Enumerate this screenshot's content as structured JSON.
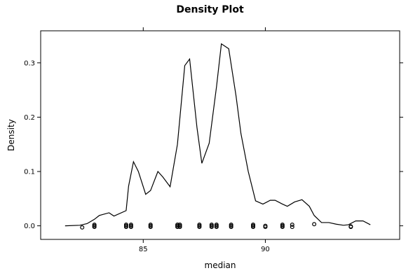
{
  "chart_data": {
    "type": "line",
    "title": "Density Plot",
    "xlabel": "median",
    "ylabel": "Density",
    "xlim": [
      80.8,
      95.5
    ],
    "ylim": [
      -0.025,
      0.359
    ],
    "x_ticks": [
      85,
      90
    ],
    "y_ticks": [
      0.0,
      0.1,
      0.2,
      0.3
    ],
    "x_tick_labels": [
      "85",
      "90"
    ],
    "y_tick_labels": [
      "0.0",
      "0.1",
      "0.2",
      "0.3"
    ],
    "grid": false,
    "series": [
      {
        "x": [
          81.8,
          82.4,
          82.7,
          83.0,
          83.2,
          83.6,
          83.8,
          84.3,
          84.4,
          84.6,
          84.8,
          85.1,
          85.3,
          85.6,
          85.8,
          86.1,
          86.4,
          86.7,
          86.9,
          87.2,
          87.4,
          87.7,
          88.0,
          88.2,
          88.5,
          88.8,
          89.0,
          89.3,
          89.6,
          89.9,
          90.2,
          90.4,
          90.7,
          90.9,
          91.2,
          91.5,
          91.8,
          92.0,
          92.3,
          92.6,
          92.9,
          93.2,
          93.4,
          93.7,
          94.0,
          94.3
        ],
        "y": [
          0.0,
          0.001,
          0.004,
          0.012,
          0.019,
          0.024,
          0.018,
          0.028,
          0.073,
          0.118,
          0.1,
          0.058,
          0.065,
          0.1,
          0.09,
          0.072,
          0.15,
          0.295,
          0.307,
          0.181,
          0.115,
          0.152,
          0.256,
          0.335,
          0.326,
          0.239,
          0.17,
          0.1,
          0.046,
          0.04,
          0.047,
          0.047,
          0.04,
          0.036,
          0.044,
          0.048,
          0.036,
          0.019,
          0.006,
          0.006,
          0.003,
          0.001,
          0.002,
          0.009,
          0.009,
          0.002
        ]
      }
    ],
    "rug_points": [
      {
        "x": 82.5,
        "y": -0.003
      },
      {
        "x": 83.0,
        "y": -0.002
      },
      {
        "x": 83.0,
        "y": 0.0
      },
      {
        "x": 83.0,
        "y": 0.002
      },
      {
        "x": 84.3,
        "y": -0.002
      },
      {
        "x": 84.3,
        "y": 0.0
      },
      {
        "x": 84.3,
        "y": 0.002
      },
      {
        "x": 84.5,
        "y": -0.002
      },
      {
        "x": 84.5,
        "y": 0.0
      },
      {
        "x": 84.5,
        "y": 0.002
      },
      {
        "x": 85.3,
        "y": -0.002
      },
      {
        "x": 85.3,
        "y": 0.0
      },
      {
        "x": 85.3,
        "y": 0.002
      },
      {
        "x": 86.4,
        "y": -0.002
      },
      {
        "x": 86.4,
        "y": 0.0
      },
      {
        "x": 86.4,
        "y": 0.002
      },
      {
        "x": 86.5,
        "y": -0.002
      },
      {
        "x": 86.5,
        "y": 0.0
      },
      {
        "x": 86.5,
        "y": 0.002
      },
      {
        "x": 87.3,
        "y": -0.002
      },
      {
        "x": 87.3,
        "y": 0.0
      },
      {
        "x": 87.3,
        "y": 0.002
      },
      {
        "x": 87.8,
        "y": -0.002
      },
      {
        "x": 87.8,
        "y": 0.0
      },
      {
        "x": 87.8,
        "y": 0.002
      },
      {
        "x": 88.0,
        "y": -0.002
      },
      {
        "x": 88.0,
        "y": 0.0
      },
      {
        "x": 88.0,
        "y": 0.002
      },
      {
        "x": 88.6,
        "y": -0.002
      },
      {
        "x": 88.6,
        "y": 0.0
      },
      {
        "x": 88.6,
        "y": 0.002
      },
      {
        "x": 89.5,
        "y": -0.002
      },
      {
        "x": 89.5,
        "y": 0.0
      },
      {
        "x": 89.5,
        "y": 0.002
      },
      {
        "x": 90.0,
        "y": -0.002
      },
      {
        "x": 90.0,
        "y": 0.0
      },
      {
        "x": 90.7,
        "y": -0.002
      },
      {
        "x": 90.7,
        "y": 0.0
      },
      {
        "x": 90.7,
        "y": 0.002
      },
      {
        "x": 91.1,
        "y": -0.002
      },
      {
        "x": 91.1,
        "y": 0.002
      },
      {
        "x": 92.0,
        "y": 0.003
      },
      {
        "x": 93.5,
        "y": -0.002
      },
      {
        "x": 93.5,
        "y": -0.001
      }
    ]
  }
}
